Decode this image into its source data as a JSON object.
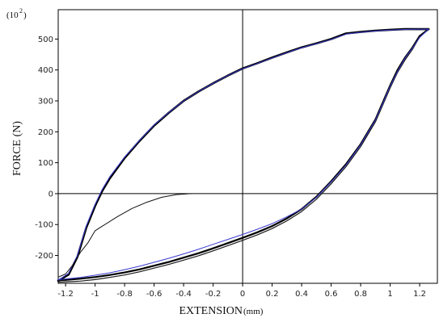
{
  "chart_data": {
    "type": "line",
    "title": "",
    "xlabel": "EXTENSION",
    "xlabel_unit": "(mm)",
    "ylabel": "FORCE (N)",
    "y_multiplier_base": "(10",
    "y_multiplier_exp": "2",
    "y_multiplier_close": ")",
    "xlim": [
      -1.25,
      1.32
    ],
    "ylim": [
      -290,
      595
    ],
    "x_ticks": [
      -1.2,
      -1,
      -0.8,
      -0.6,
      -0.4,
      -0.2,
      0,
      0.2,
      0.4,
      0.6,
      0.8,
      1,
      1.2
    ],
    "x_tick_labels": [
      "-1.2",
      "-1",
      "-0.8",
      "-0.6",
      "-0.4",
      "-0.2",
      "0",
      "0.2",
      "0.4",
      "0.6",
      "0.8",
      "1",
      "1.2"
    ],
    "y_ticks": [
      -200,
      -100,
      0,
      100,
      200,
      300,
      400,
      500
    ],
    "y_tick_labels": [
      "-200",
      "-100",
      "0",
      "100",
      "200",
      "300",
      "400",
      "500"
    ],
    "grid": false,
    "reference_lines": {
      "x": 0,
      "y": 0
    },
    "series": [
      {
        "color": "#000000",
        "width": 2.6,
        "x": [
          -1.25,
          -1.18,
          -1.12,
          -1.06,
          -1.0,
          -0.95,
          -0.9,
          -0.8,
          -0.7,
          -0.6,
          -0.5,
          -0.4,
          -0.3,
          -0.2,
          -0.1,
          0.0,
          0.1,
          0.2,
          0.3,
          0.4,
          0.5,
          0.6,
          0.7,
          0.8,
          0.9,
          1.0,
          1.1,
          1.2,
          1.26
        ],
        "y": [
          -282,
          -262,
          -205,
          -110,
          -40,
          10,
          50,
          115,
          170,
          220,
          262,
          300,
          330,
          357,
          382,
          405,
          422,
          440,
          457,
          473,
          486,
          500,
          518,
          523,
          527,
          530,
          532,
          532,
          532
        ]
      },
      {
        "color": "#000000",
        "width": 2.2,
        "x": [
          1.26,
          1.2,
          1.15,
          1.1,
          1.05,
          1.0,
          0.95,
          0.9,
          0.8,
          0.7,
          0.6,
          0.5,
          0.4,
          0.3,
          0.2,
          0.1,
          0.0,
          -0.1,
          -0.2,
          -0.3,
          -0.4,
          -0.5,
          -0.6,
          -0.7,
          -0.8,
          -0.9,
          -1.0,
          -1.1,
          -1.2,
          -1.25
        ],
        "y": [
          532,
          510,
          472,
          440,
          400,
          350,
          295,
          240,
          160,
          95,
          40,
          -10,
          -50,
          -80,
          -105,
          -125,
          -143,
          -160,
          -177,
          -193,
          -207,
          -221,
          -233,
          -245,
          -255,
          -263,
          -270,
          -275,
          -279,
          -280
        ]
      },
      {
        "color": "#1a1a1a",
        "width": 1.2,
        "x": [
          1.26,
          1.2,
          1.15,
          1.1,
          1.05,
          1.0,
          0.95,
          0.9,
          0.8,
          0.7,
          0.6,
          0.5,
          0.4,
          0.3,
          0.2,
          0.1,
          0.0,
          -0.1,
          -0.2,
          -0.3,
          -0.4,
          -0.5,
          -0.6,
          -0.7,
          -0.8,
          -0.9,
          -1.0,
          -1.1,
          -1.2,
          -1.25
        ],
        "y": [
          532,
          507,
          466,
          432,
          392,
          342,
          287,
          232,
          152,
          87,
          32,
          -18,
          -58,
          -88,
          -113,
          -133,
          -151,
          -168,
          -185,
          -201,
          -215,
          -229,
          -241,
          -253,
          -263,
          -271,
          -278,
          -283,
          -285,
          -286
        ]
      },
      {
        "color": "#3a3ad0",
        "width": 1,
        "x": [
          1.26,
          1.2,
          1.15,
          1.1,
          1.05,
          1.0,
          0.95,
          0.9,
          0.8,
          0.7,
          0.6,
          0.5,
          0.4,
          0.3,
          0.2,
          0.1,
          0.0,
          -0.1,
          -0.2,
          -0.3,
          -0.4,
          -0.5,
          -0.6,
          -0.7,
          -0.8,
          -0.9,
          -1.0,
          -1.1,
          -1.2,
          -1.25
        ],
        "y": [
          532,
          505,
          470,
          438,
          395,
          348,
          292,
          238,
          158,
          92,
          38,
          -12,
          -50,
          -75,
          -97,
          -115,
          -132,
          -148,
          -164,
          -180,
          -195,
          -209,
          -222,
          -235,
          -246,
          -256,
          -264,
          -271,
          -276,
          -278
        ]
      },
      {
        "color": "#3a3ad0",
        "width": 1,
        "x": [
          -1.25,
          -1.18,
          -1.12,
          -1.06,
          -1.0,
          -0.95,
          -0.9,
          -0.8,
          -0.7,
          -0.6,
          -0.5,
          -0.4,
          -0.3,
          -0.2,
          -0.1,
          0.0,
          0.1,
          0.2,
          0.3,
          0.4,
          0.5,
          0.6,
          0.7,
          0.8,
          0.9,
          1.0,
          1.1,
          1.2,
          1.26
        ],
        "y": [
          -280,
          -258,
          -200,
          -105,
          -35,
          15,
          55,
          118,
          172,
          222,
          263,
          300,
          330,
          357,
          382,
          404,
          421,
          439,
          456,
          472,
          485,
          499,
          516,
          522,
          526,
          529,
          531,
          532,
          532
        ]
      },
      {
        "color": "#111111",
        "width": 1,
        "x": [
          -1.25,
          -1.2,
          -1.15,
          -1.1,
          -1.05,
          -1.0,
          -0.95,
          -0.85,
          -0.75,
          -0.65,
          -0.55,
          -0.45,
          -0.35
        ],
        "y": [
          -270,
          -260,
          -230,
          -190,
          -160,
          -120,
          -105,
          -75,
          -48,
          -28,
          -12,
          -3,
          0
        ]
      }
    ]
  }
}
